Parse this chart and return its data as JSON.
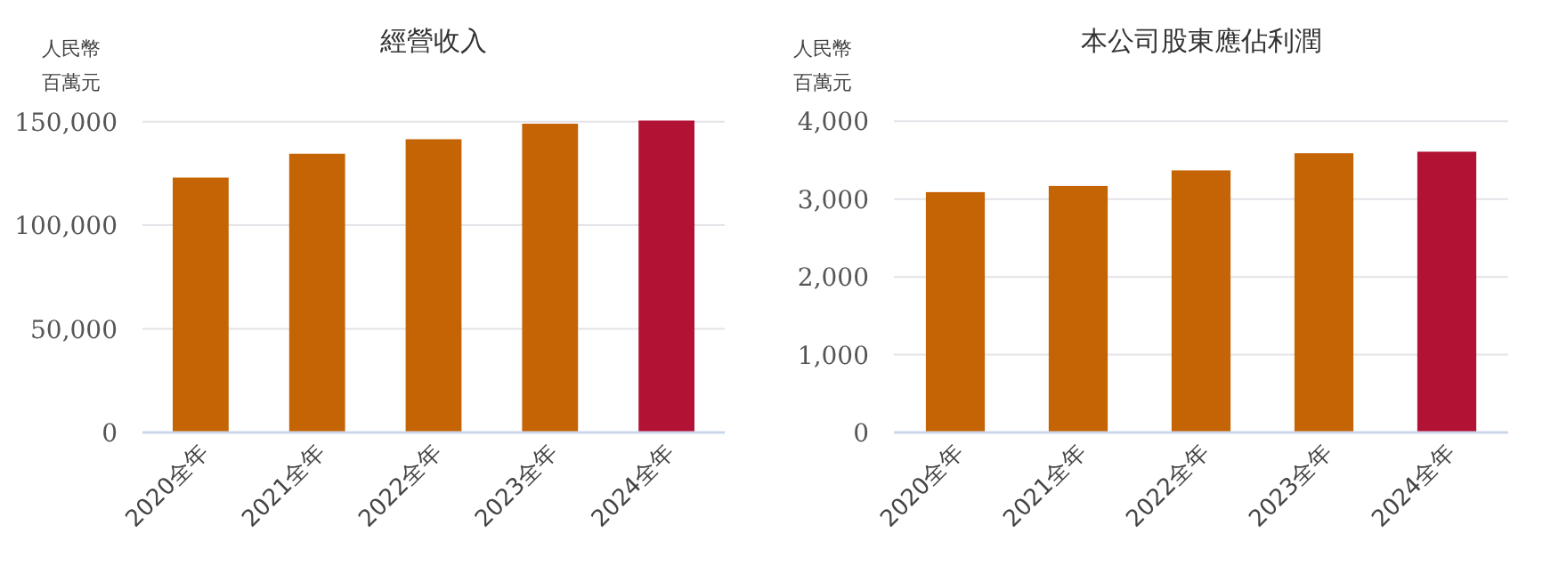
{
  "chart_data": [
    {
      "type": "bar",
      "title": "經營收入",
      "ylabel": "人民幣百萬元",
      "categories": [
        "2020全年",
        "2021全年",
        "2022全年",
        "2023全年",
        "2024全年"
      ],
      "values": [
        123000,
        134500,
        141500,
        149000,
        150500
      ],
      "colors": [
        "#c46404",
        "#c46404",
        "#c46404",
        "#c46404",
        "#b21234"
      ],
      "ylim": [
        0,
        152000
      ],
      "yticks": [
        {
          "value": 0,
          "label": "0"
        },
        {
          "value": 50000,
          "label": "50,000"
        },
        {
          "value": 100000,
          "label": "100,000"
        },
        {
          "value": 150000,
          "label": "150,000"
        }
      ],
      "grid": "y"
    },
    {
      "type": "bar",
      "title": "本公司股東應佔利潤",
      "ylabel": "人民幣百萬元",
      "categories": [
        "2020全年",
        "2021全年",
        "2022全年",
        "2023全年",
        "2024全年"
      ],
      "values": [
        3090,
        3170,
        3370,
        3590,
        3610
      ],
      "colors": [
        "#c46404",
        "#c46404",
        "#c46404",
        "#c46404",
        "#b21234"
      ],
      "ylim": [
        0,
        4050
      ],
      "yticks": [
        {
          "value": 0,
          "label": "0"
        },
        {
          "value": 1000,
          "label": "1,000"
        },
        {
          "value": 2000,
          "label": "2,000"
        },
        {
          "value": 3000,
          "label": "3,000"
        },
        {
          "value": 4000,
          "label": "4,000"
        }
      ],
      "grid": "y"
    }
  ]
}
